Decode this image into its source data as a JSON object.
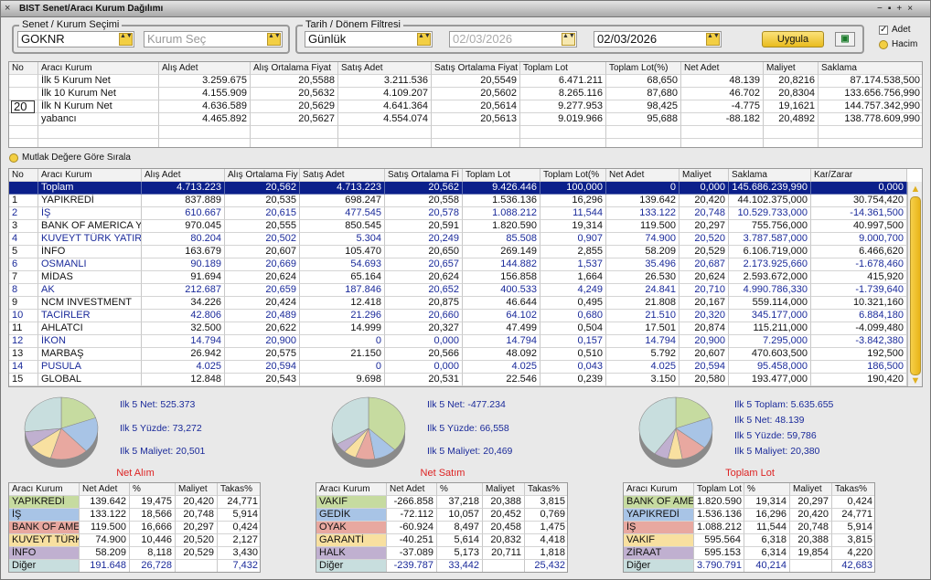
{
  "window": {
    "title": "BIST Senet/Aracı Kurum Dağılımı"
  },
  "filters": {
    "senet_label": "Senet / Kurum Seçimi",
    "senet_value": "GOKNR",
    "kurum_placeholder": "Kurum Seç",
    "tarih_label": "Tarih / Dönem Filtresi",
    "period": "Günlük",
    "date_from": "02/03/2026",
    "date_to": "02/03/2026",
    "apply": "Uygula",
    "check_adet": "Adet",
    "check_hacim": "Hacim"
  },
  "summary_table": {
    "headers": [
      "No",
      "Aracı Kurum",
      "Alış Adet",
      "Alış Ortalama Fiyat",
      "Satış Adet",
      "Satış Ortalama Fiyat",
      "Toplam Lot",
      "Toplam Lot(%)",
      "Net Adet",
      "Maliyet",
      "Saklama"
    ],
    "n_input": "20",
    "rows": [
      [
        "İlk 5 Kurum Net",
        "3.259.675",
        "20,5588",
        "3.211.536",
        "20,5549",
        "6.471.211",
        "68,650",
        "48.139",
        "20,8216",
        "87.174.538,500"
      ],
      [
        "İlk 10 Kurum Net",
        "4.155.909",
        "20,5632",
        "4.109.207",
        "20,5602",
        "8.265.116",
        "87,680",
        "46.702",
        "20,8304",
        "133.656.756,990"
      ],
      [
        "İlk N Kurum Net",
        "4.636.589",
        "20,5629",
        "4.641.364",
        "20,5614",
        "9.277.953",
        "98,425",
        "-4.775",
        "19,1621",
        "144.757.342,990"
      ],
      [
        "yabancı",
        "4.465.892",
        "20,5627",
        "4.554.074",
        "20,5613",
        "9.019.966",
        "95,688",
        "-88.182",
        "20,4892",
        "138.778.609,990"
      ]
    ]
  },
  "sort_option": "Mutlak Değere Göre Sırala",
  "main_table": {
    "headers": [
      "No",
      "Aracı Kurum",
      "Alış Adet",
      "Alış Ortalama Fiy",
      "Satış Adet",
      "Satış Ortalama Fi",
      "Toplam Lot",
      "Toplam Lot(%",
      "Net Adet",
      "Maliyet",
      "Saklama",
      "Kar/Zarar"
    ],
    "total": [
      "Toplam",
      "4.713.223",
      "20,562",
      "4.713.223",
      "20,562",
      "9.426.446",
      "100,000",
      "0",
      "0,000",
      "145.686.239,990",
      "0,000"
    ],
    "rows": [
      [
        "1",
        "YAPIKREDİ",
        "837.889",
        "20,535",
        "698.247",
        "20,558",
        "1.536.136",
        "16,296",
        "139.642",
        "20,420",
        "44.102.375,000",
        "30.754,420"
      ],
      [
        "2",
        "İŞ",
        "610.667",
        "20,615",
        "477.545",
        "20,578",
        "1.088.212",
        "11,544",
        "133.122",
        "20,748",
        "10.529.733,000",
        "-14.361,500"
      ],
      [
        "3",
        "BANK OF AMERICA Y",
        "970.045",
        "20,555",
        "850.545",
        "20,591",
        "1.820.590",
        "19,314",
        "119.500",
        "20,297",
        "755.756,000",
        "40.997,500"
      ],
      [
        "4",
        "KUVEYT TÜRK YATIRI",
        "80.204",
        "20,502",
        "5.304",
        "20,249",
        "85.508",
        "0,907",
        "74.900",
        "20,520",
        "3.787.587,000",
        "9.000,700"
      ],
      [
        "5",
        "İNFO",
        "163.679",
        "20,607",
        "105.470",
        "20,650",
        "269.149",
        "2,855",
        "58.209",
        "20,529",
        "6.106.719,000",
        "6.466,620"
      ],
      [
        "6",
        "OSMANLI",
        "90.189",
        "20,669",
        "54.693",
        "20,657",
        "144.882",
        "1,537",
        "35.496",
        "20,687",
        "2.173.925,660",
        "-1.678,460"
      ],
      [
        "7",
        "MİDAS",
        "91.694",
        "20,624",
        "65.164",
        "20,624",
        "156.858",
        "1,664",
        "26.530",
        "20,624",
        "2.593.672,000",
        "415,920"
      ],
      [
        "8",
        "AK",
        "212.687",
        "20,659",
        "187.846",
        "20,652",
        "400.533",
        "4,249",
        "24.841",
        "20,710",
        "4.990.786,330",
        "-1.739,640"
      ],
      [
        "9",
        "NCM INVESTMENT",
        "34.226",
        "20,424",
        "12.418",
        "20,875",
        "46.644",
        "0,495",
        "21.808",
        "20,167",
        "559.114,000",
        "10.321,160"
      ],
      [
        "10",
        "TACİRLER",
        "42.806",
        "20,489",
        "21.296",
        "20,660",
        "64.102",
        "0,680",
        "21.510",
        "20,320",
        "345.177,000",
        "6.884,180"
      ],
      [
        "11",
        "AHLATCI",
        "32.500",
        "20,622",
        "14.999",
        "20,327",
        "47.499",
        "0,504",
        "17.501",
        "20,874",
        "115.211,000",
        "-4.099,480"
      ],
      [
        "12",
        "İKON",
        "14.794",
        "20,900",
        "0",
        "0,000",
        "14.794",
        "0,157",
        "14.794",
        "20,900",
        "7.295,000",
        "-3.842,380"
      ],
      [
        "13",
        "MARBAŞ",
        "26.942",
        "20,575",
        "21.150",
        "20,566",
        "48.092",
        "0,510",
        "5.792",
        "20,607",
        "470.603,500",
        "192,500"
      ],
      [
        "14",
        "PUSULA",
        "4.025",
        "20,594",
        "0",
        "0,000",
        "4.025",
        "0,043",
        "4.025",
        "20,594",
        "95.458,000",
        "186,500"
      ],
      [
        "15",
        "GLOBAL",
        "12.848",
        "20,543",
        "9.698",
        "20,531",
        "22.546",
        "0,239",
        "3.150",
        "20,580",
        "193.477,000",
        "190,420"
      ]
    ]
  },
  "slice_colors": [
    "#c6dba0",
    "#a8c4e6",
    "#e8a8a0",
    "#f8e0a0",
    "#c0b0d0",
    "#c8dede"
  ],
  "panels": [
    {
      "stats": [
        "Ilk 5 Net: 525.373",
        "Ilk 5 Yüzde: 73,272",
        "Ilk 5 Maliyet: 20,501"
      ],
      "title": "Net Alım",
      "headers": [
        "Aracı Kurum",
        "Net Adet",
        "%",
        "Maliyet",
        "Takas%"
      ],
      "rows": [
        [
          "YAPIKREDİ",
          "139.642",
          "19,475",
          "20,420",
          "24,771"
        ],
        [
          "İŞ",
          "133.122",
          "18,566",
          "20,748",
          "5,914"
        ],
        [
          "BANK OF AME",
          "119.500",
          "16,666",
          "20,297",
          "0,424"
        ],
        [
          "KUVEYT TÜRK",
          "74.900",
          "10,446",
          "20,520",
          "2,127"
        ],
        [
          "İNFO",
          "58.209",
          "8,118",
          "20,529",
          "3,430"
        ],
        [
          "Diğer",
          "191.648",
          "26,728",
          null,
          "7,432"
        ]
      ]
    },
    {
      "stats": [
        "Ilk 5 Net: -477.234",
        "Ilk 5 Yüzde: 66,558",
        "Ilk 5 Maliyet: 20,469"
      ],
      "title": "Net Satım",
      "headers": [
        "Aracı Kurum",
        "Net Adet",
        "%",
        "Maliyet",
        "Takas%"
      ],
      "rows": [
        [
          "VAKIF",
          "-266.858",
          "37,218",
          "20,388",
          "3,815"
        ],
        [
          "GEDİK",
          "-72.112",
          "10,057",
          "20,452",
          "0,769"
        ],
        [
          "OYAK",
          "-60.924",
          "8,497",
          "20,458",
          "1,475"
        ],
        [
          "GARANTİ",
          "-40.251",
          "5,614",
          "20,832",
          "4,418"
        ],
        [
          "HALK",
          "-37.089",
          "5,173",
          "20,711",
          "1,818"
        ],
        [
          "Diğer",
          "-239.787",
          "33,442",
          null,
          "25,432"
        ]
      ]
    },
    {
      "stats": [
        "Ilk 5 Toplam: 5.635.655",
        "Ilk 5 Net: 48.139",
        "Ilk 5 Yüzde: 59,786",
        "Ilk 5 Maliyet: 20,380"
      ],
      "title": "Toplam Lot",
      "headers": [
        "Aracı Kurum",
        "Toplam Lot",
        "%",
        "Maliyet",
        "Takas%"
      ],
      "rows": [
        [
          "BANK OF AME",
          "1.820.590",
          "19,314",
          "20,297",
          "0,424"
        ],
        [
          "YAPIKREDİ",
          "1.536.136",
          "16,296",
          "20,420",
          "24,771"
        ],
        [
          "İŞ",
          "1.088.212",
          "11,544",
          "20,748",
          "5,914"
        ],
        [
          "VAKIF",
          "595.564",
          "6,318",
          "20,388",
          "3,815"
        ],
        [
          "ZİRAAT",
          "595.153",
          "6,314",
          "19,854",
          "4,220"
        ],
        [
          "Diğer",
          "3.790.791",
          "40,214",
          null,
          "42,683"
        ]
      ]
    }
  ]
}
